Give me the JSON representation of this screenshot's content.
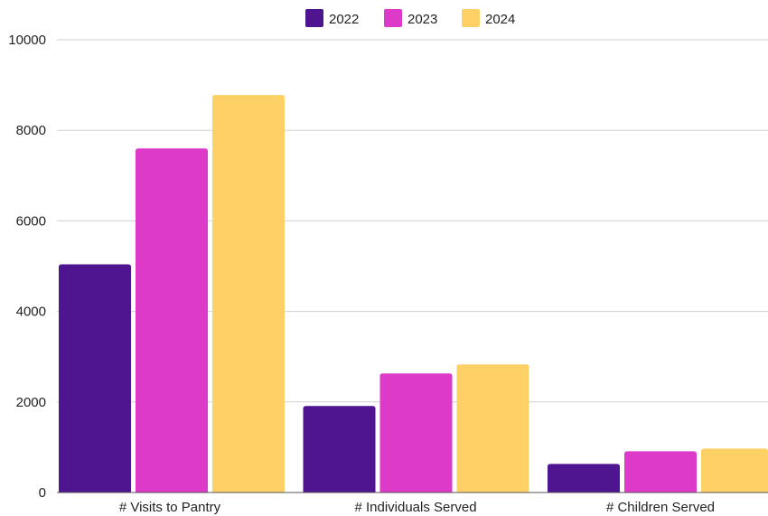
{
  "chart_data": {
    "type": "bar",
    "categories": [
      "# Visits to Pantry",
      "# Individuals Served",
      "# Children Served"
    ],
    "series": [
      {
        "name": "2022",
        "color": "#4f148f",
        "values": [
          5040,
          1910,
          630
        ]
      },
      {
        "name": "2023",
        "color": "#dd3ac9",
        "values": [
          7600,
          2630,
          910
        ]
      },
      {
        "name": "2024",
        "color": "#fed166",
        "values": [
          8780,
          2830,
          970
        ]
      }
    ],
    "ylim": [
      0,
      10000
    ],
    "yticks": [
      0,
      2000,
      4000,
      6000,
      8000,
      10000
    ],
    "grid": true,
    "legend_position": "top-center"
  }
}
